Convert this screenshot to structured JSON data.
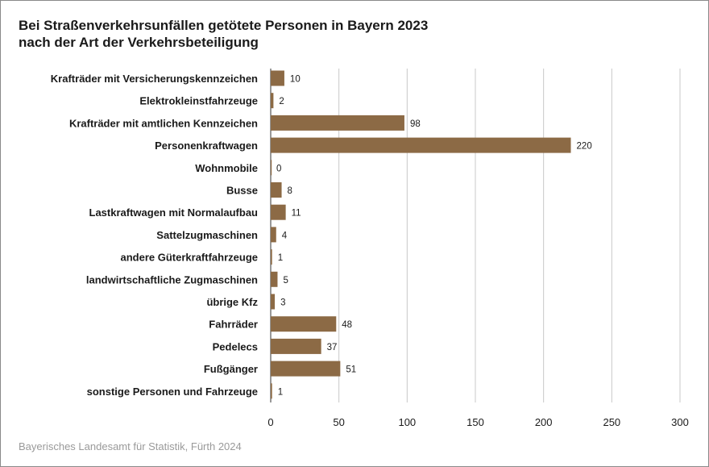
{
  "title_line1": "Bei Straßenverkehrsunfällen getötete Personen in Bayern 2023",
  "title_line2": "nach der Art der Verkehrsbeteiligung",
  "source": "Bayerisches Landesamt für Statistik, Fürth 2024",
  "colors": {
    "bar": "#8c6a45",
    "grid": "#c8c8c8",
    "axis": "#333333",
    "text": "#1a1a1a"
  },
  "chart_data": {
    "type": "bar",
    "orientation": "horizontal",
    "title": "Bei Straßenverkehrsunfällen getötete Personen in Bayern 2023 nach der Art der Verkehrsbeteiligung",
    "categories": [
      "Krafträder mit Versicherungskennzeichen",
      "Elektrokleinstfahrzeuge",
      "Krafträder mit amtlichen Kennzeichen",
      "Personenkraftwagen",
      "Wohnmobile",
      "Busse",
      "Lastkraftwagen mit Normalaufbau",
      "Sattelzugmaschinen",
      "andere Güterkraftfahrzeuge",
      "landwirtschaftliche Zugmaschinen",
      "übrige Kfz",
      "Fahrräder",
      "Pedelecs",
      "Fußgänger",
      "sonstige Personen und Fahrzeuge"
    ],
    "values": [
      10,
      2,
      98,
      220,
      0,
      8,
      11,
      4,
      1,
      5,
      3,
      48,
      37,
      51,
      1
    ],
    "xlim": [
      0,
      300
    ],
    "xticks": [
      0,
      50,
      100,
      150,
      200,
      250,
      300
    ],
    "grid": true,
    "legend": "none",
    "data_labels": true
  }
}
